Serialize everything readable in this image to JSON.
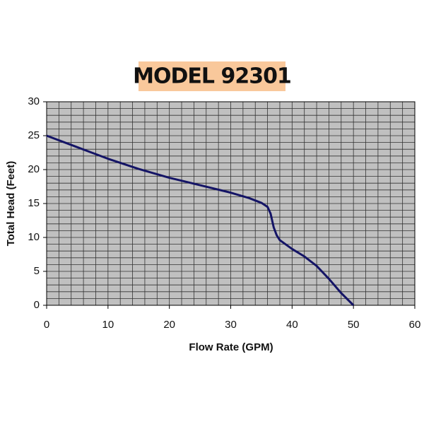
{
  "chart_data": {
    "type": "line",
    "title": "MODEL 92301",
    "x_label": "Flow Rate (GPM)",
    "y_label": "Total Head (Feet)",
    "x": [
      0,
      5,
      10,
      15,
      20,
      25,
      30,
      33,
      35,
      36,
      36.5,
      37,
      37.5,
      38,
      40,
      42,
      44,
      46,
      48,
      50
    ],
    "series": [
      {
        "name": "Total Head",
        "color": "#141466",
        "values": [
          25,
          23.3,
          21.6,
          20.1,
          18.8,
          17.7,
          16.6,
          15.8,
          15.1,
          14.5,
          13.5,
          11.5,
          10.3,
          9.6,
          8.3,
          7.2,
          5.8,
          3.9,
          1.8,
          0
        ]
      }
    ],
    "xlim": [
      0,
      60
    ],
    "ylim": [
      0,
      30
    ],
    "xticks": [
      0,
      10,
      20,
      30,
      40,
      50,
      60
    ],
    "yticks": [
      0,
      5,
      10,
      15,
      20,
      25,
      30
    ],
    "grid": true,
    "minor_grid_divisions": 5,
    "plot_background": "#c0c0c0",
    "title_background": "#f9c89b"
  }
}
